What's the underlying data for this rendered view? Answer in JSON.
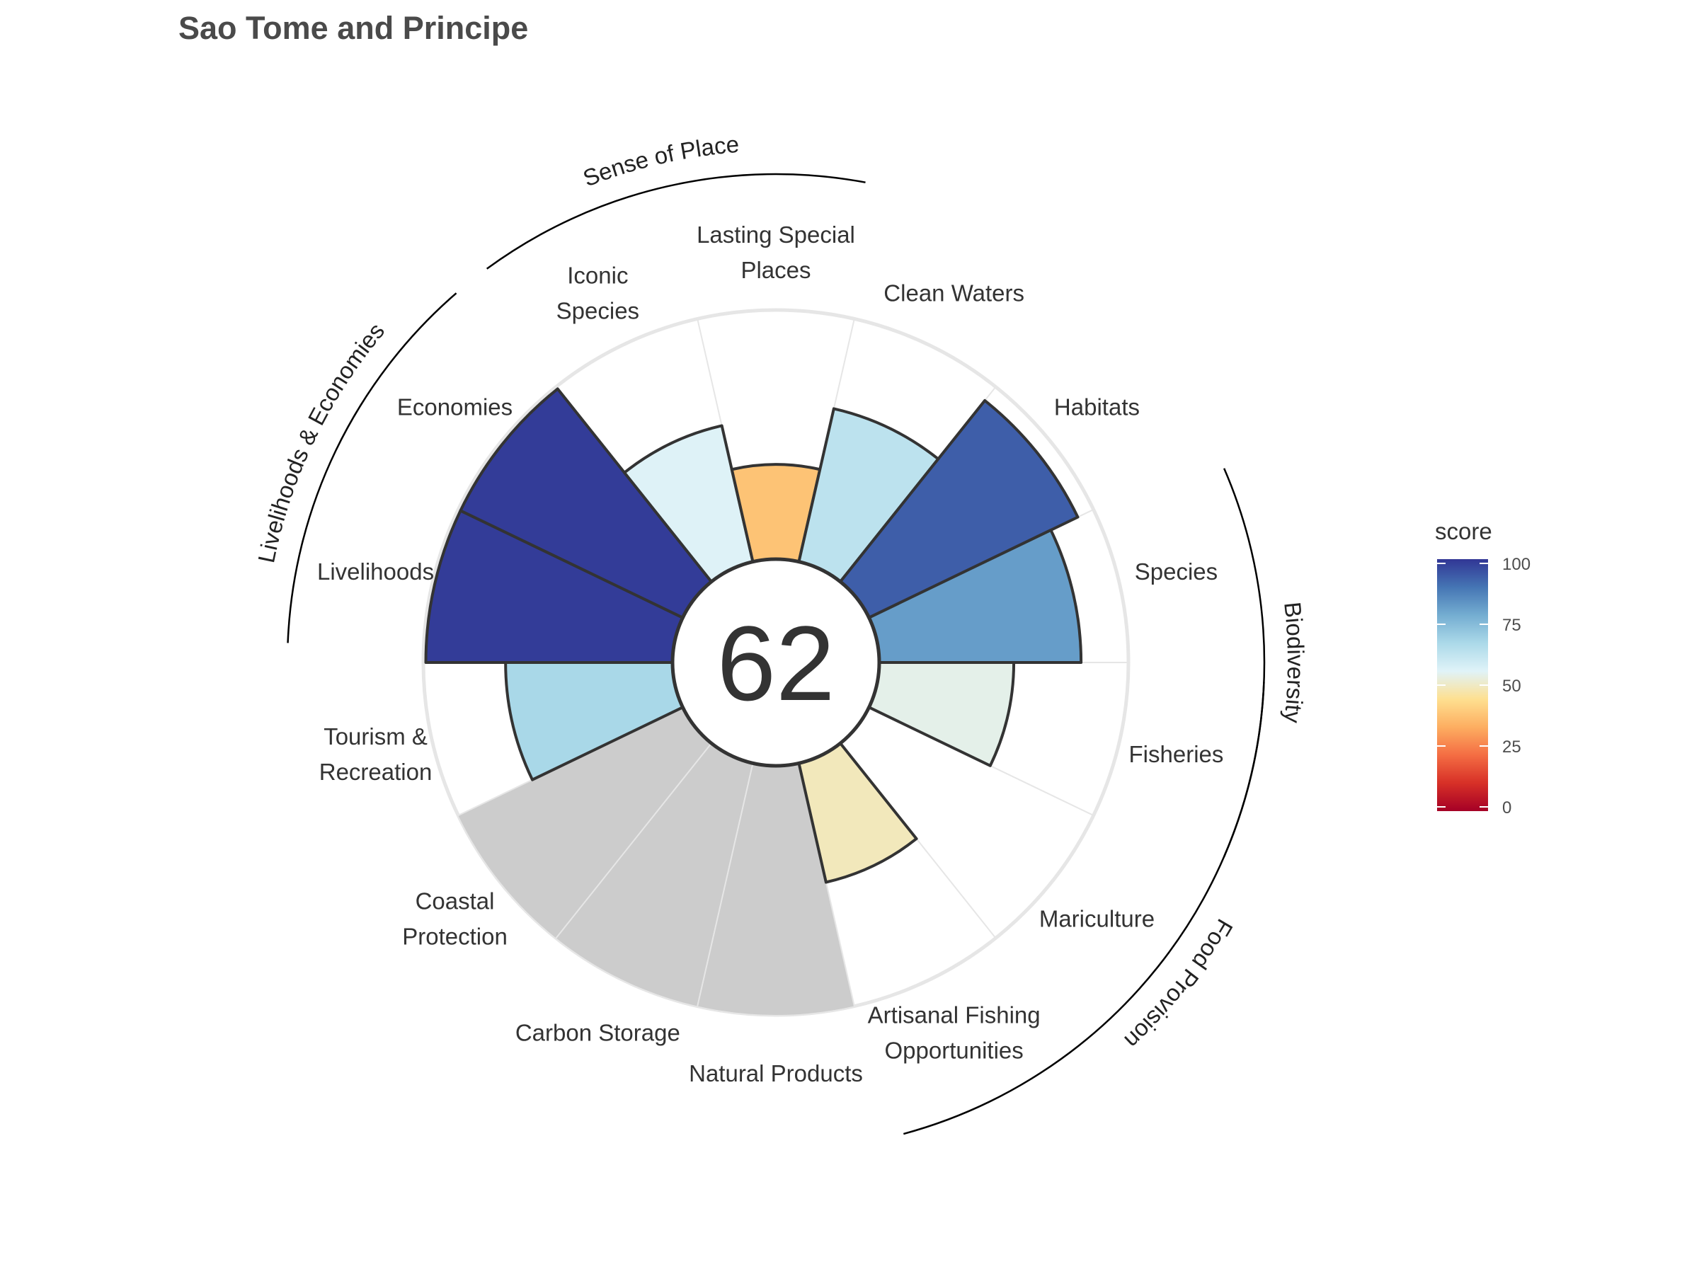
{
  "chart_data": {
    "type": "polar-bar",
    "title": "Sao Tome and Principe",
    "center_score": "62",
    "ylim": [
      0,
      100
    ],
    "goals": [
      {
        "label": "Fisheries",
        "label_lines": [
          "Fisheries"
        ],
        "value": 54,
        "missing": false
      },
      {
        "label": "Mariculture",
        "label_lines": [
          "Mariculture"
        ],
        "value": null,
        "missing": true
      },
      {
        "label": "Artisanal Fishing Opportunities",
        "label_lines": [
          "Artisanal Fishing",
          "Opportunities"
        ],
        "value": 49,
        "missing": false
      },
      {
        "label": "Natural Products",
        "label_lines": [
          "Natural Products"
        ],
        "value": null,
        "missing": true,
        "gray": true
      },
      {
        "label": "Carbon Storage",
        "label_lines": [
          "Carbon Storage"
        ],
        "value": null,
        "missing": true,
        "gray": true
      },
      {
        "label": "Coastal Protection",
        "label_lines": [
          "Coastal",
          "Protection"
        ],
        "value": null,
        "missing": true,
        "gray": true
      },
      {
        "label": "Tourism & Recreation",
        "label_lines": [
          "Tourism &",
          "Recreation"
        ],
        "value": 67,
        "missing": false
      },
      {
        "label": "Livelihoods",
        "label_lines": [
          "Livelihoods"
        ],
        "value": 99,
        "missing": false
      },
      {
        "label": "Economies",
        "label_lines": [
          "Economies"
        ],
        "value": 99,
        "missing": false
      },
      {
        "label": "Iconic Species",
        "label_lines": [
          "Iconic",
          "Species"
        ],
        "value": 56,
        "missing": false
      },
      {
        "label": "Lasting Special Places",
        "label_lines": [
          "Lasting Special",
          "Places"
        ],
        "value": 38,
        "missing": false
      },
      {
        "label": "Clean Waters",
        "label_lines": [
          "Clean Waters"
        ],
        "value": 63,
        "missing": false
      },
      {
        "label": "Habitats",
        "label_lines": [
          "Habitats"
        ],
        "value": 93,
        "missing": false
      },
      {
        "label": "Species",
        "label_lines": [
          "Species"
        ],
        "value": 81,
        "missing": false
      }
    ],
    "groups": [
      {
        "label": "Food Provision"
      },
      {
        "label": "Biodiversity"
      },
      {
        "label": "Sense of Place"
      },
      {
        "label": "Livelihoods & Economies"
      }
    ],
    "legend": {
      "title": "score",
      "ticks": [
        0,
        25,
        50,
        75,
        100
      ],
      "placement": "right",
      "colors": [
        "#a50026",
        "#d73027",
        "#f46d43",
        "#fdae61",
        "#fee090",
        "#e0f3f8",
        "#abd9e9",
        "#74add1",
        "#4575b4",
        "#313695"
      ]
    },
    "colors": {
      "gray_fill": "#cccccc",
      "grid": "#e6e6e6",
      "bar_stroke": "#333333"
    }
  }
}
